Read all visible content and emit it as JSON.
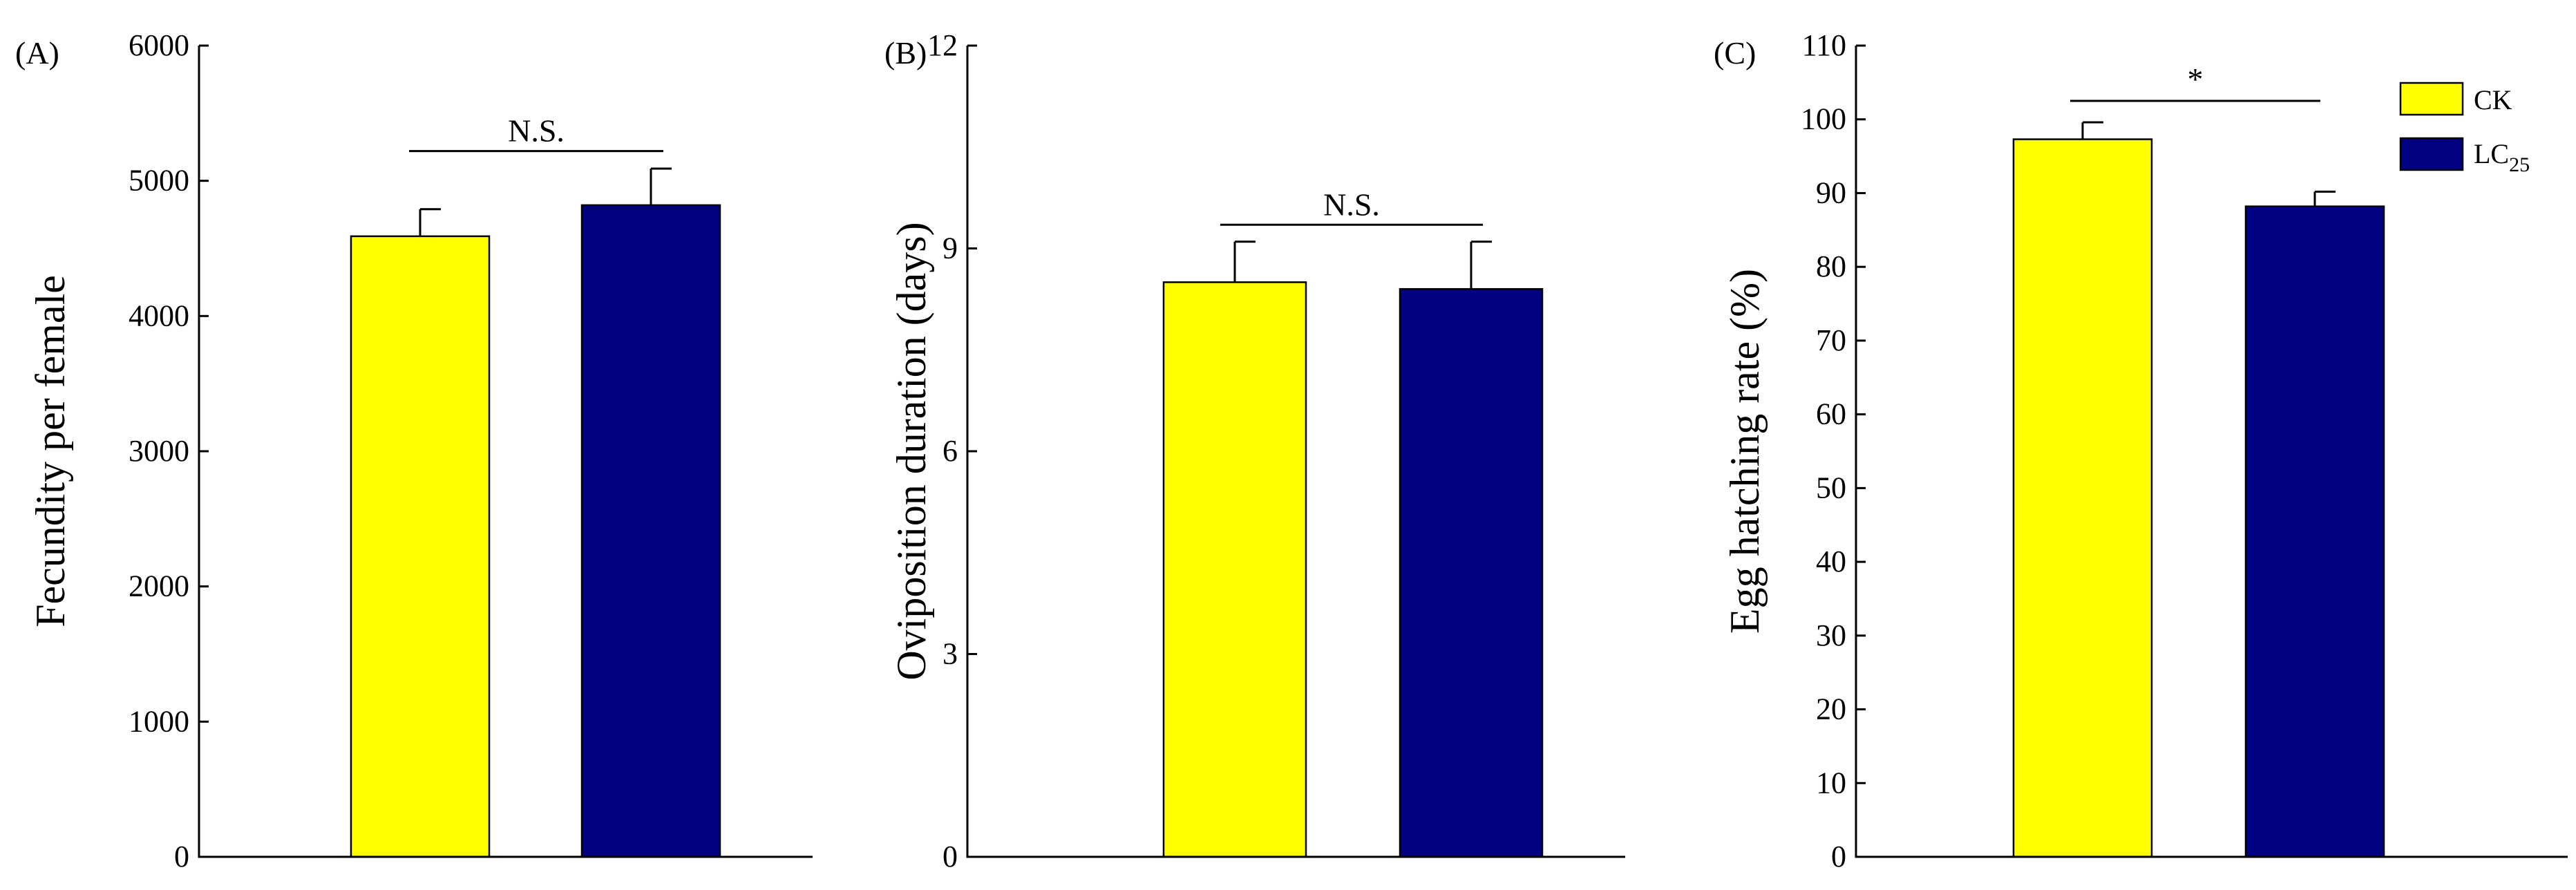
{
  "chart_data": [
    {
      "type": "bar",
      "panel_label": "(A)",
      "ylabel": "Fecundity per female",
      "ylim": [
        0,
        6000
      ],
      "yticks": [
        0,
        1000,
        2000,
        3000,
        4000,
        5000,
        6000
      ],
      "series": [
        {
          "name": "CK",
          "value": 4590,
          "error": 200,
          "color": "#ffff00"
        },
        {
          "name": "LC25",
          "value": 4820,
          "error": 270,
          "color": "#000080"
        }
      ],
      "significance": {
        "label": "N.S.",
        "level": 5220
      }
    },
    {
      "type": "bar",
      "panel_label": "(B)",
      "ylabel": "Oviposition duration (days)",
      "ylim": [
        0,
        12
      ],
      "yticks": [
        0,
        3,
        6,
        9,
        12
      ],
      "series": [
        {
          "name": "CK",
          "value": 8.5,
          "error": 0.6,
          "color": "#ffff00"
        },
        {
          "name": "LC25",
          "value": 8.4,
          "error": 0.7,
          "color": "#000080"
        }
      ],
      "significance": {
        "label": "N.S.",
        "level": 9.35
      }
    },
    {
      "type": "bar",
      "panel_label": "(C)",
      "ylabel": "Egg hatching rate (%)",
      "ylim": [
        0,
        110
      ],
      "yticks": [
        0,
        10,
        20,
        30,
        40,
        50,
        60,
        70,
        80,
        90,
        100,
        110
      ],
      "series": [
        {
          "name": "CK",
          "value": 97.3,
          "error": 2.3,
          "color": "#ffff00"
        },
        {
          "name": "LC25",
          "value": 88.2,
          "error": 2.0,
          "color": "#000080"
        }
      ],
      "significance": {
        "label": "*",
        "level": 102.5
      }
    }
  ],
  "legend": {
    "position": "top-right",
    "items": [
      {
        "label": "CK",
        "color": "#ffff00"
      },
      {
        "label": "LC",
        "subscript": "25",
        "color": "#000080"
      }
    ]
  }
}
